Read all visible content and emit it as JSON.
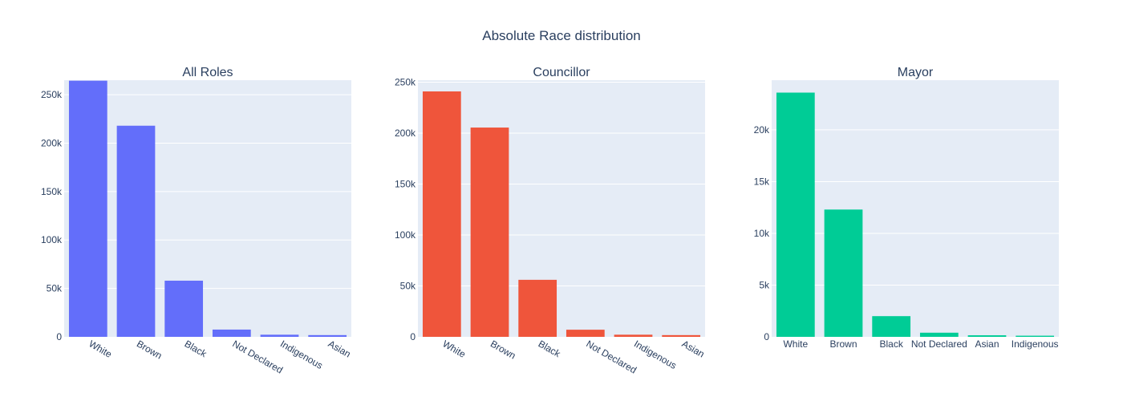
{
  "title": "Absolute Race distribution",
  "chart_data": [
    {
      "type": "bar",
      "title": "All Roles",
      "color": "#636efa",
      "categories": [
        "White",
        "Brown",
        "Black",
        "Not Declared",
        "Indigenous",
        "Asian"
      ],
      "values": [
        264500,
        218000,
        58000,
        7500,
        2200,
        1800
      ],
      "ylim": [
        0,
        265000
      ],
      "yticks": [
        0,
        50000,
        100000,
        150000,
        200000,
        250000
      ],
      "ytick_labels": [
        "0",
        "50k",
        "100k",
        "150k",
        "200k",
        "250k"
      ],
      "x_tick_angle": 30,
      "grid": true
    },
    {
      "type": "bar",
      "title": "Councillor",
      "color": "#ef553b",
      "categories": [
        "White",
        "Brown",
        "Black",
        "Not Declared",
        "Indigenous",
        "Asian"
      ],
      "values": [
        241000,
        205500,
        56000,
        7000,
        2100,
        1700
      ],
      "ylim": [
        0,
        252000
      ],
      "yticks": [
        0,
        50000,
        100000,
        150000,
        200000,
        250000
      ],
      "ytick_labels": [
        "0",
        "50k",
        "100k",
        "150k",
        "200k",
        "250k"
      ],
      "x_tick_angle": 30,
      "grid": true
    },
    {
      "type": "bar",
      "title": "Mayor",
      "color": "#00cc96",
      "categories": [
        "White",
        "Brown",
        "Black",
        "Not Declared",
        "Asian",
        "Indigenous"
      ],
      "values": [
        23600,
        12300,
        2000,
        400,
        150,
        110
      ],
      "ylim": [
        0,
        24800
      ],
      "yticks": [
        0,
        5000,
        10000,
        15000,
        20000
      ],
      "ytick_labels": [
        "0",
        "5k",
        "10k",
        "15k",
        "20k"
      ],
      "x_tick_angle": 0,
      "grid": true
    }
  ]
}
